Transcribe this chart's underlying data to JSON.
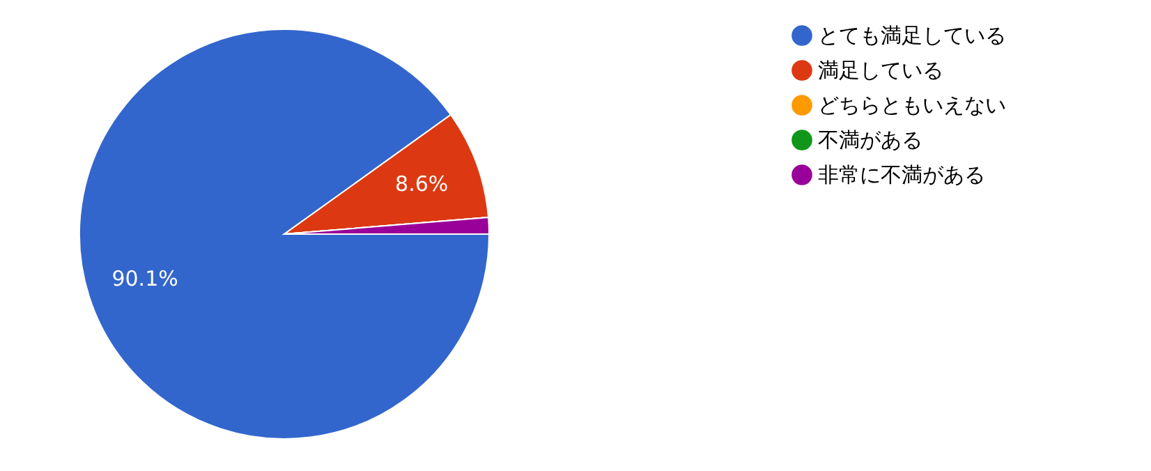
{
  "chart_data": {
    "type": "pie",
    "categories": [
      "とても満足している",
      "満足している",
      "どちらともいえない",
      "不満がある",
      "非常に不満がある"
    ],
    "values": [
      90.1,
      8.6,
      0,
      0,
      1.3
    ],
    "colors": [
      "#3366cc",
      "#dc3912",
      "#ff9900",
      "#109618",
      "#990099"
    ],
    "value_labels": [
      "90.1%",
      "8.6%",
      null,
      null,
      null
    ],
    "legend": "right"
  }
}
